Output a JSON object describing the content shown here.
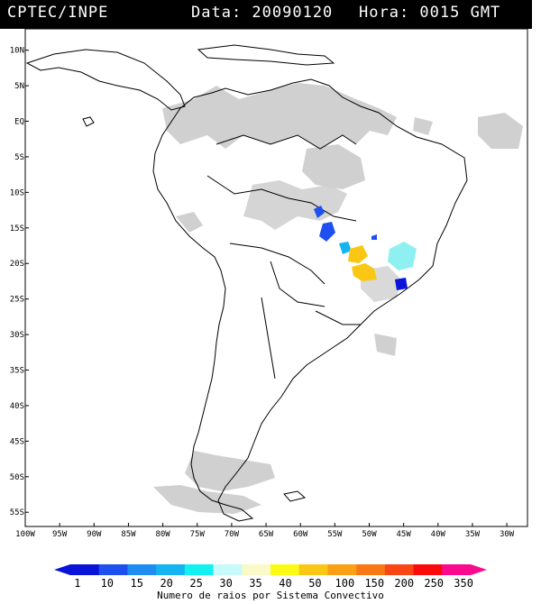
{
  "header": {
    "source": "CPTEC/INPE",
    "date_label": "Data: 20090120",
    "time_label": "Hora: 0015 GMT"
  },
  "map": {
    "lat_labels": [
      "10N",
      "5N",
      "EQ",
      "5S",
      "10S",
      "15S",
      "20S",
      "25S",
      "30S",
      "35S",
      "40S",
      "45S",
      "50S",
      "55S"
    ],
    "lat_values": [
      10,
      5,
      0,
      -5,
      -10,
      -15,
      -20,
      -25,
      -30,
      -35,
      -40,
      -45,
      -50,
      -55
    ],
    "lon_labels": [
      "100W",
      "95W",
      "90W",
      "85W",
      "80W",
      "75W",
      "70W",
      "65W",
      "60W",
      "55W",
      "50W",
      "45W",
      "40W",
      "35W",
      "30W"
    ],
    "lon_values": [
      -100,
      -95,
      -90,
      -85,
      -80,
      -75,
      -70,
      -65,
      -60,
      -55,
      -50,
      -45,
      -40,
      -35,
      -30
    ],
    "lon_range": [
      -100,
      -27
    ],
    "lat_range": [
      -57,
      13
    ]
  },
  "legend": {
    "labels": [
      "1",
      "10",
      "15",
      "20",
      "25",
      "30",
      "35",
      "40",
      "50",
      "100",
      "150",
      "200",
      "250",
      "350"
    ],
    "colors": [
      "#0a14d8",
      "#1e50f0",
      "#1e8cf0",
      "#14b4f0",
      "#14f0f0",
      "#c8fafa",
      "#fafac8",
      "#fafa14",
      "#fac814",
      "#faa014",
      "#fa7814",
      "#fa4614",
      "#fa0a0a",
      "#fa0a8c"
    ],
    "title": "Numero de raios por Sistema Convectivo"
  }
}
